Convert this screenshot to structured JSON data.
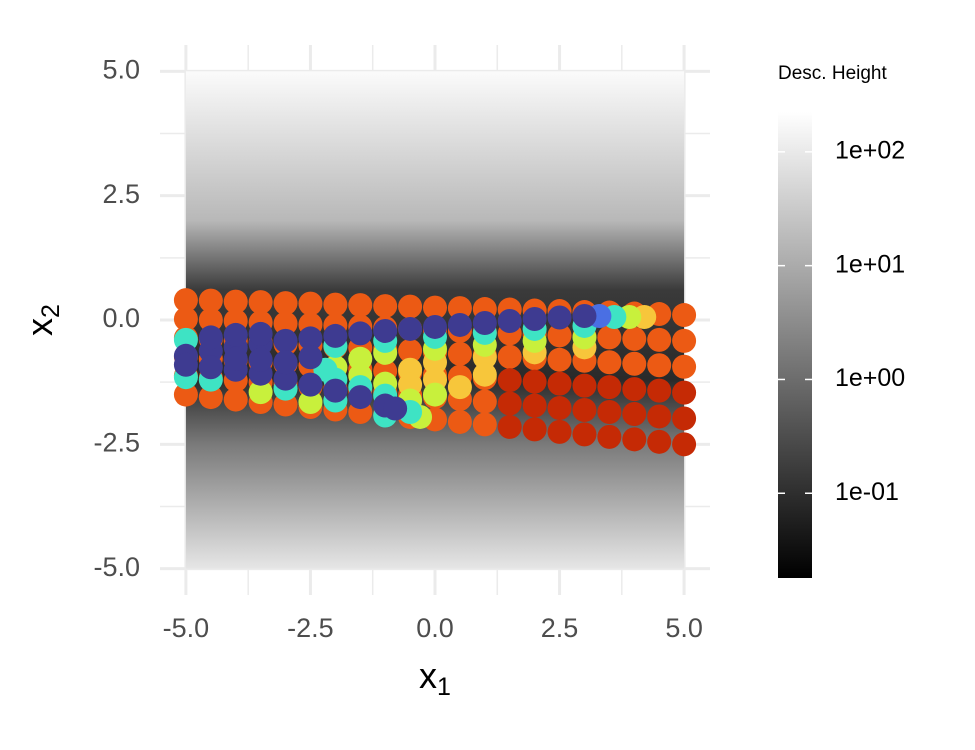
{
  "chart_data": {
    "type": "scatter",
    "xlabel": {
      "text": "x",
      "subscript": "1"
    },
    "ylabel": {
      "text": "x",
      "subscript": "2"
    },
    "xlim": [
      -5.52,
      5.52
    ],
    "ylim": [
      -5.53,
      5.53
    ],
    "xticks": [
      {
        "value": -5,
        "label": "-5.0"
      },
      {
        "value": -2.5,
        "label": "-2.5"
      },
      {
        "value": 0,
        "label": "0.0"
      },
      {
        "value": 2.5,
        "label": "2.5"
      },
      {
        "value": 5,
        "label": "5.0"
      }
    ],
    "yticks": [
      {
        "value": -5,
        "label": "-5.0"
      },
      {
        "value": -2.5,
        "label": "-2.5"
      },
      {
        "value": 0,
        "label": "0.0"
      },
      {
        "value": 2.5,
        "label": "2.5"
      },
      {
        "value": 5,
        "label": "5.0"
      }
    ],
    "grid": true,
    "colorbar": {
      "title": "Desc. Height",
      "scale": "log",
      "lim": [
        0.018,
        224
      ],
      "ticks": [
        {
          "value": 0.1,
          "label": "1e-01"
        },
        {
          "value": 1,
          "label": "1e+00"
        },
        {
          "value": 10,
          "label": "1e+01"
        },
        {
          "value": 100,
          "label": "1e+02"
        }
      ],
      "colors": [
        "#000000",
        "#ffffff"
      ]
    },
    "series": [
      {
        "color": "#ec5a14",
        "x": [
          -5,
          -5,
          -5,
          -5,
          -5,
          -5,
          -4.5,
          -4.5,
          -4.5,
          -4.5,
          -4.5,
          -4.5,
          -4,
          -4,
          -4,
          -4,
          -4,
          -4,
          -3.5,
          -3.5,
          -3.5,
          -3.5,
          -3.5,
          -3.5,
          -3,
          -3,
          -3,
          -3,
          -3,
          -3,
          -2.5,
          -2.5,
          -2.5,
          -2.5,
          -2.5,
          -2.5,
          -2,
          -2,
          -2,
          -2,
          -2,
          -2,
          -1.5,
          -1.5,
          -1.5,
          -1.5,
          -1.5,
          -1.5,
          -1,
          -1,
          -1,
          -1,
          -1,
          -1,
          -0.5,
          -0.5,
          -0.5,
          -0.5,
          -0.5,
          -0.5,
          0,
          0,
          0,
          0,
          0,
          0,
          0.5,
          0.5,
          0.5,
          0.5,
          0.5,
          0.5,
          1,
          1,
          1,
          1,
          1,
          1,
          1.5,
          1.5,
          1.5,
          2,
          2,
          2,
          2.5,
          2.5,
          2.5,
          3,
          3,
          3,
          3.5,
          3.5,
          3.5,
          4,
          4,
          4,
          4.5,
          4.5,
          4.5,
          5,
          5,
          5
        ],
        "y": [
          0.4,
          0.02,
          -0.36,
          -0.74,
          -1.12,
          -1.5,
          0.39,
          0,
          -0.39,
          -0.78,
          -1.16,
          -1.55,
          0.37,
          -0.02,
          -0.42,
          -0.81,
          -1.21,
          -1.6,
          0.36,
          -0.05,
          -0.45,
          -0.85,
          -1.25,
          -1.65,
          0.34,
          -0.07,
          -0.48,
          -0.88,
          -1.29,
          -1.7,
          0.33,
          -0.09,
          -0.51,
          -0.92,
          -1.34,
          -1.75,
          0.31,
          -0.11,
          -0.54,
          -0.96,
          -1.38,
          -1.8,
          0.3,
          -0.13,
          -0.56,
          -0.99,
          -1.42,
          -1.85,
          0.28,
          -0.16,
          -0.59,
          -1.03,
          -1.46,
          -1.9,
          0.27,
          -0.18,
          -0.62,
          -1.06,
          -1.51,
          -1.95,
          0.25,
          -0.2,
          -0.65,
          -1.1,
          -1.55,
          -2,
          0.24,
          -0.22,
          -0.68,
          -1.14,
          -1.59,
          -2.05,
          0.22,
          -0.24,
          -0.71,
          -1.17,
          -1.64,
          -2.1,
          0.21,
          -0.27,
          -0.74,
          0.19,
          -0.29,
          -0.77,
          0.18,
          -0.31,
          -0.8,
          0.16,
          -0.33,
          -0.82,
          0.15,
          -0.35,
          -0.85,
          0.13,
          -0.38,
          -0.88,
          0.12,
          -0.4,
          -0.91,
          0.1,
          -0.42,
          -0.94
        ]
      },
      {
        "color": "#c52a05",
        "x": [
          1.5,
          1.5,
          1.5,
          2,
          2,
          2,
          2.5,
          2.5,
          2.5,
          3,
          3,
          3,
          3.5,
          3.5,
          3.5,
          4,
          4,
          4,
          4.5,
          4.5,
          4.5,
          5,
          5,
          5
        ],
        "y": [
          -1.21,
          -1.68,
          -2.15,
          -1.24,
          -1.72,
          -2.2,
          -1.28,
          -1.77,
          -2.25,
          -1.32,
          -1.81,
          -2.3,
          -1.35,
          -1.85,
          -2.35,
          -1.39,
          -1.89,
          -2.4,
          -1.42,
          -1.94,
          -2.45,
          -1.46,
          -1.98,
          -2.5
        ]
      },
      {
        "color": "#f7c63b",
        "x": [
          4.2,
          3,
          2,
          1,
          0,
          -0.5,
          0,
          0.5,
          1,
          -0.5
        ],
        "y": [
          0.06,
          -0.55,
          -0.65,
          -0.75,
          -0.85,
          -1,
          -1.2,
          -1.35,
          -1.1,
          -1.3
        ]
      },
      {
        "color": "#c8f03c",
        "x": [
          3.9,
          3,
          2,
          1,
          0,
          -1,
          -1.5,
          -2,
          -1.5,
          -1,
          0,
          -0.5,
          -0.3,
          -3.5,
          -2.5
        ],
        "y": [
          0.06,
          -0.35,
          -0.42,
          -0.5,
          -0.58,
          -0.66,
          -0.78,
          -0.95,
          -1.12,
          -1.28,
          -1.5,
          -1.62,
          -1.95,
          -1.45,
          -1.65
        ]
      },
      {
        "color": "#3ee3c4",
        "x": [
          3.6,
          3,
          2,
          1,
          0,
          -1,
          -2,
          -3,
          -2,
          -1,
          -0.5,
          -2,
          -1.5,
          -1,
          -5,
          -5,
          -4.5,
          -2.2
        ],
        "y": [
          0.06,
          -0.12,
          -0.18,
          -0.26,
          -0.34,
          -0.42,
          -0.52,
          -1.38,
          -1.62,
          -1.92,
          -1.85,
          -1.2,
          -1.35,
          -1.52,
          -1.15,
          -0.4,
          -1.2,
          -1
        ]
      },
      {
        "color": "#4a6fe3",
        "x": [
          3.3
        ],
        "y": [
          0.08
        ]
      },
      {
        "color": "#3e3b91",
        "x": [
          3,
          2.5,
          2,
          1.5,
          1,
          0.5,
          0,
          -0.5,
          -1,
          -1.5,
          -2,
          -2.5,
          -3,
          -3.5,
          -4,
          -4.5,
          -5,
          -4.5,
          -4,
          -3.5,
          -3,
          -2.5,
          -2,
          -1.5,
          -1,
          -0.8,
          -4.5,
          -4,
          -3.5,
          -4,
          -3.5,
          -3,
          -2.5,
          -5
        ],
        "y": [
          0.08,
          0.05,
          0.02,
          -0.02,
          -0.06,
          -0.1,
          -0.14,
          -0.18,
          -0.22,
          -0.27,
          -0.32,
          -0.37,
          -0.42,
          -0.48,
          -0.55,
          -0.62,
          -0.72,
          -0.95,
          -1,
          -1.08,
          -1.18,
          -1.3,
          -1.42,
          -1.55,
          -1.72,
          -1.78,
          -0.35,
          -0.3,
          -0.28,
          -0.78,
          -0.8,
          -0.85,
          -0.75,
          -0.9
        ]
      }
    ]
  }
}
